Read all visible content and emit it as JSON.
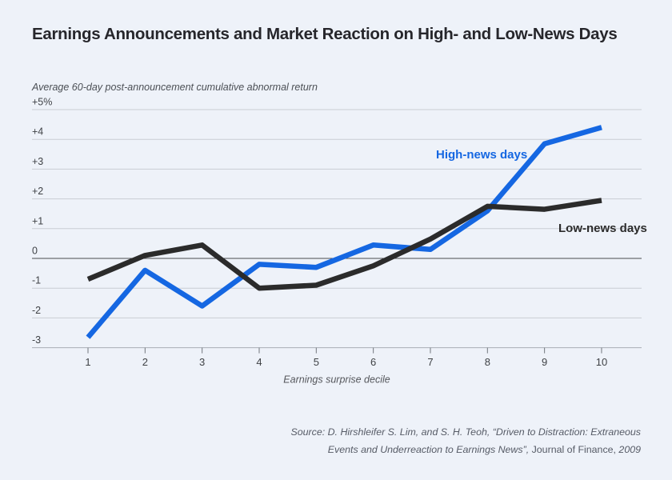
{
  "header": {
    "title": "Earnings Announcements and Market Reaction on High- and Low-News Days"
  },
  "chart_data": {
    "type": "line",
    "title": "Earnings Announcements and Market Reaction on High- and Low-News Days",
    "subtitle": "Average 60-day post-announcement cumulative abnormal return",
    "xlabel": "Earnings surprise decile",
    "ylabel": "Average 60-day post-announcement cumulative abnormal return",
    "ylim": [
      -3,
      5
    ],
    "grid": true,
    "legend_position": "inline-labels",
    "categories": [
      "1",
      "2",
      "3",
      "4",
      "5",
      "6",
      "7",
      "8",
      "9",
      "10"
    ],
    "y_ticks": [
      {
        "value": 5,
        "label": "+5%"
      },
      {
        "value": 4,
        "label": "+4"
      },
      {
        "value": 3,
        "label": "+3"
      },
      {
        "value": 2,
        "label": "+2"
      },
      {
        "value": 1,
        "label": "+1"
      },
      {
        "value": 0,
        "label": "0"
      },
      {
        "value": -1,
        "label": "-1"
      },
      {
        "value": -2,
        "label": "-2"
      },
      {
        "value": -3,
        "label": "-3"
      }
    ],
    "series": [
      {
        "name": "High-news days",
        "color": "#1567e2",
        "values": [
          -2.65,
          -0.4,
          -1.6,
          -0.2,
          -0.3,
          0.45,
          0.3,
          1.6,
          3.85,
          4.4
        ]
      },
      {
        "name": "Low-news days",
        "color": "#2b2b2b",
        "values": [
          -0.7,
          0.1,
          0.45,
          -1.0,
          -0.9,
          -0.25,
          0.65,
          1.75,
          1.65,
          1.95
        ]
      }
    ],
    "colors": {
      "background": "#eef2f9",
      "gridline": "#c9cdd4",
      "zero_line": "#4a4c50",
      "axis_line": "#a9aeb6",
      "tick_mark": "#71767d",
      "tick_text": "#3f4246",
      "high_series": "#1567e2",
      "low_series": "#2b2b2b"
    }
  },
  "source": {
    "line1": "Source: D. Hirshleifer S. Lim, and S. H. Teoh, “Driven to Distraction: Extraneous",
    "line2_italic": "Events and Underreaction to Earnings News”,",
    "line2_journal": " Journal of Finance,",
    "line2_year": " 2009"
  }
}
